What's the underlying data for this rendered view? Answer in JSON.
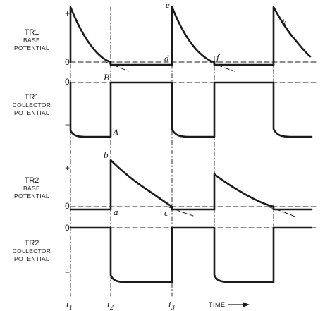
{
  "panels": [
    {
      "id": "tr1-base",
      "label_lines": [
        "TR1",
        "BASE",
        "POTENTIAL"
      ]
    },
    {
      "id": "tr1-collector",
      "label_lines": [
        "TR1",
        "COLLECTOR",
        "POTENTIAL"
      ]
    },
    {
      "id": "tr2-base",
      "label_lines": [
        "TR2",
        "BASE",
        "POTENTIAL"
      ]
    },
    {
      "id": "tr2-collector",
      "label_lines": [
        "TR2",
        "COLLECTOR",
        "POTENTIAL"
      ]
    }
  ],
  "axis_marks": {
    "plus": "+",
    "minus": "−",
    "zero": "0"
  },
  "point_labels": {
    "A": "A",
    "B": "B",
    "a": "a",
    "b": "b",
    "c": "c",
    "d": "d",
    "e": "e",
    "f": "f",
    "k": "k"
  },
  "time_labels": {
    "t1": "t",
    "t1_sub": "1",
    "t2": "t",
    "t2_sub": "2",
    "t3": "t",
    "t3_sub": "3"
  },
  "time_axis_label": "TIME"
}
